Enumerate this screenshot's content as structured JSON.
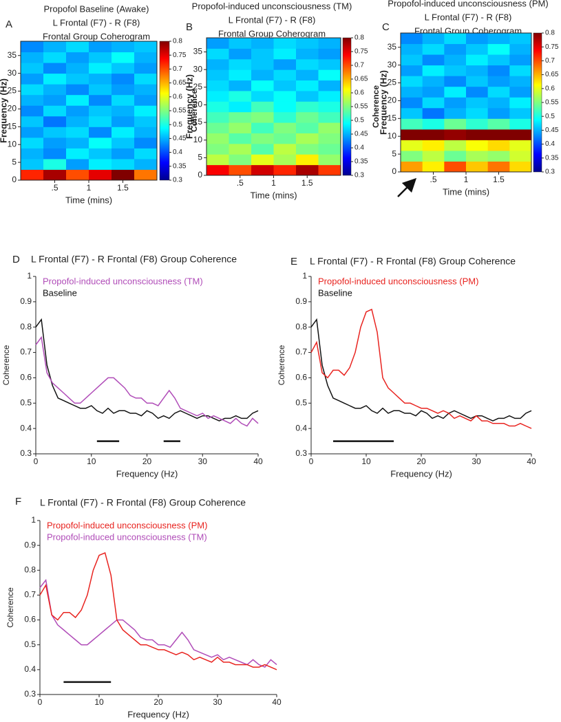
{
  "chart_data": [
    {
      "type": "heatmap",
      "label": "A",
      "title": [
        "Propofol Baseline (Awake)",
        "L Frontal (F7) -  R (F8)",
        "Frontal Group Coherogram"
      ],
      "x_label": "Time (mins)",
      "y_label": "Frequency (Hz)",
      "colorbar_label": "Coherence",
      "xlim": [
        0,
        2
      ],
      "xticks": [
        {
          "value": 0.5,
          "label": ".5"
        },
        1,
        1.5
      ],
      "ylim": [
        0,
        39
      ],
      "yticks": [
        0,
        5,
        10,
        15,
        20,
        25,
        30,
        35
      ],
      "clim": [
        0.3,
        0.8
      ],
      "cticks": [
        0.3,
        0.35,
        0.4,
        0.45,
        0.5,
        0.55,
        0.6,
        0.65,
        0.7,
        0.75,
        0.8
      ],
      "z": [
        [
          0.72,
          0.78,
          0.7,
          0.75,
          0.8,
          0.68
        ],
        [
          0.46,
          0.5,
          0.44,
          0.48,
          0.47,
          0.45
        ],
        [
          0.45,
          0.43,
          0.48,
          0.46,
          0.44,
          0.47
        ],
        [
          0.47,
          0.44,
          0.45,
          0.49,
          0.46,
          0.43
        ],
        [
          0.44,
          0.46,
          0.47,
          0.43,
          0.48,
          0.45
        ],
        [
          0.46,
          0.42,
          0.45,
          0.47,
          0.44,
          0.46
        ],
        [
          0.43,
          0.47,
          0.44,
          0.46,
          0.45,
          0.48
        ],
        [
          0.45,
          0.44,
          0.48,
          0.43,
          0.47,
          0.44
        ],
        [
          0.47,
          0.45,
          0.43,
          0.46,
          0.44,
          0.45
        ],
        [
          0.44,
          0.48,
          0.46,
          0.45,
          0.43,
          0.47
        ],
        [
          0.46,
          0.43,
          0.45,
          0.48,
          0.46,
          0.44
        ],
        [
          0.45,
          0.47,
          0.44,
          0.46,
          0.49,
          0.45
        ],
        [
          0.43,
          0.45,
          0.47,
          0.44,
          0.45,
          0.46
        ]
      ]
    },
    {
      "type": "heatmap",
      "label": "B",
      "title": [
        "Propofol-induced unconsciousness (TM)",
        "L Frontal (F7) -  R (F8)",
        "Frontal Group Coherogram"
      ],
      "x_label": "Time (mins)",
      "y_label": "Frequency (Hz)",
      "colorbar_label": "Coherence",
      "xlim": [
        0,
        2
      ],
      "xticks": [
        {
          "value": 0.5,
          "label": ".5"
        },
        1,
        1.5
      ],
      "ylim": [
        0,
        39
      ],
      "yticks": [
        0,
        5,
        10,
        15,
        20,
        25,
        30,
        35
      ],
      "clim": [
        0.3,
        0.8
      ],
      "cticks": [
        0.3,
        0.35,
        0.4,
        0.45,
        0.5,
        0.55,
        0.6,
        0.65,
        0.7,
        0.75,
        0.8
      ],
      "z": [
        [
          0.74,
          0.7,
          0.76,
          0.72,
          0.78,
          0.71
        ],
        [
          0.58,
          0.55,
          0.6,
          0.57,
          0.62,
          0.56
        ],
        [
          0.55,
          0.57,
          0.53,
          0.58,
          0.55,
          0.54
        ],
        [
          0.56,
          0.53,
          0.55,
          0.54,
          0.57,
          0.55
        ],
        [
          0.54,
          0.56,
          0.52,
          0.55,
          0.53,
          0.56
        ],
        [
          0.52,
          0.54,
          0.55,
          0.51,
          0.54,
          0.52
        ],
        [
          0.5,
          0.48,
          0.52,
          0.49,
          0.51,
          0.5
        ],
        [
          0.48,
          0.5,
          0.47,
          0.49,
          0.46,
          0.48
        ],
        [
          0.47,
          0.45,
          0.49,
          0.46,
          0.48,
          0.45
        ],
        [
          0.46,
          0.48,
          0.45,
          0.47,
          0.45,
          0.49
        ],
        [
          0.45,
          0.47,
          0.46,
          0.44,
          0.47,
          0.46
        ],
        [
          0.47,
          0.44,
          0.46,
          0.48,
          0.45,
          0.44
        ],
        [
          0.44,
          0.46,
          0.45,
          0.47,
          0.46,
          0.45
        ]
      ]
    },
    {
      "type": "heatmap",
      "label": "C",
      "title": [
        "Propofol-induced unconsciousness (PM)",
        "L Frontal (F7) -  R (F8)",
        "Frontal Group Coherogram"
      ],
      "x_label": "Time (mins)",
      "y_label": "Frequency (Hz)",
      "colorbar_label": "Coherence",
      "xlim": [
        0,
        2
      ],
      "xticks": [
        {
          "value": 0.5,
          "label": ".5"
        },
        1,
        1.5
      ],
      "ylim": [
        0,
        39
      ],
      "yticks": [
        0,
        5,
        10,
        15,
        20,
        25,
        30,
        35
      ],
      "clim": [
        0.3,
        0.8
      ],
      "cticks": [
        0.3,
        0.35,
        0.4,
        0.45,
        0.5,
        0.55,
        0.6,
        0.65,
        0.7,
        0.75,
        0.8
      ],
      "z": [
        [
          0.66,
          0.62,
          0.7,
          0.64,
          0.68,
          0.63
        ],
        [
          0.55,
          0.58,
          0.54,
          0.57,
          0.56,
          0.59
        ],
        [
          0.6,
          0.62,
          0.58,
          0.61,
          0.63,
          0.6
        ],
        [
          0.8,
          0.8,
          0.79,
          0.8,
          0.8,
          0.8
        ],
        [
          0.52,
          0.5,
          0.54,
          0.51,
          0.53,
          0.5
        ],
        [
          0.46,
          0.42,
          0.45,
          0.47,
          0.44,
          0.46
        ],
        [
          0.43,
          0.47,
          0.44,
          0.46,
          0.45,
          0.48
        ],
        [
          0.45,
          0.44,
          0.48,
          0.43,
          0.47,
          0.44
        ],
        [
          0.47,
          0.45,
          0.43,
          0.46,
          0.44,
          0.45
        ],
        [
          0.44,
          0.48,
          0.46,
          0.45,
          0.43,
          0.47
        ],
        [
          0.46,
          0.43,
          0.45,
          0.48,
          0.46,
          0.44
        ],
        [
          0.45,
          0.47,
          0.44,
          0.46,
          0.49,
          0.45
        ],
        [
          0.43,
          0.45,
          0.47,
          0.44,
          0.45,
          0.46
        ]
      ]
    },
    {
      "type": "line",
      "label": "D",
      "title": "L Frontal (F7) - R Frontal (F8)   Group Coherence",
      "x_label": "Frequency (Hz)",
      "y_label": "Coherence",
      "xlim": [
        0,
        40
      ],
      "xticks": [
        0,
        10,
        20,
        30,
        40
      ],
      "ylim": [
        0.3,
        1
      ],
      "yticks": [
        0.3,
        0.4,
        0.5,
        0.6,
        0.7,
        0.8,
        0.9,
        1
      ],
      "legend": "upper left",
      "x": [
        0,
        1,
        2,
        3,
        4,
        5,
        6,
        7,
        8,
        9,
        10,
        11,
        12,
        13,
        14,
        15,
        16,
        17,
        18,
        19,
        20,
        21,
        22,
        23,
        24,
        25,
        26,
        27,
        28,
        29,
        30,
        31,
        32,
        33,
        34,
        35,
        36,
        37,
        38,
        39,
        40
      ],
      "series": [
        {
          "name": "Propofol-induced unconsciousness (TM)",
          "color": "#b04cb8",
          "values": [
            0.73,
            0.76,
            0.62,
            0.58,
            0.56,
            0.54,
            0.52,
            0.5,
            0.5,
            0.52,
            0.54,
            0.56,
            0.58,
            0.6,
            0.6,
            0.58,
            0.56,
            0.53,
            0.52,
            0.52,
            0.5,
            0.5,
            0.49,
            0.52,
            0.55,
            0.52,
            0.48,
            0.47,
            0.46,
            0.45,
            0.46,
            0.44,
            0.45,
            0.44,
            0.43,
            0.42,
            0.44,
            0.42,
            0.41,
            0.44,
            0.42
          ]
        },
        {
          "name": "Baseline",
          "color": "#111111",
          "values": [
            0.8,
            0.83,
            0.65,
            0.57,
            0.52,
            0.51,
            0.5,
            0.49,
            0.48,
            0.48,
            0.49,
            0.47,
            0.46,
            0.48,
            0.46,
            0.47,
            0.47,
            0.46,
            0.46,
            0.45,
            0.47,
            0.46,
            0.44,
            0.45,
            0.44,
            0.46,
            0.47,
            0.46,
            0.45,
            0.44,
            0.45,
            0.45,
            0.44,
            0.43,
            0.44,
            0.44,
            0.45,
            0.44,
            0.44,
            0.46,
            0.47
          ]
        }
      ],
      "significance_bars": [
        [
          11,
          15
        ],
        [
          23,
          26
        ]
      ],
      "significance_y": 0.35
    },
    {
      "type": "line",
      "label": "E",
      "title": "L Frontal (F7) - R Frontal (F8)   Group Coherence",
      "x_label": "Frequency (Hz)",
      "y_label": "Coherence",
      "xlim": [
        0,
        40
      ],
      "xticks": [
        0,
        10,
        20,
        30,
        40
      ],
      "ylim": [
        0.3,
        1
      ],
      "yticks": [
        0.3,
        0.4,
        0.5,
        0.6,
        0.7,
        0.8,
        0.9,
        1
      ],
      "legend": "upper left",
      "x": [
        0,
        1,
        2,
        3,
        4,
        5,
        6,
        7,
        8,
        9,
        10,
        11,
        12,
        13,
        14,
        15,
        16,
        17,
        18,
        19,
        20,
        21,
        22,
        23,
        24,
        25,
        26,
        27,
        28,
        29,
        30,
        31,
        32,
        33,
        34,
        35,
        36,
        37,
        38,
        39,
        40
      ],
      "series": [
        {
          "name": "Propofol-induced unconsciousness (PM)",
          "color": "#e8231f",
          "values": [
            0.7,
            0.74,
            0.62,
            0.6,
            0.63,
            0.63,
            0.61,
            0.64,
            0.7,
            0.8,
            0.86,
            0.87,
            0.78,
            0.6,
            0.56,
            0.54,
            0.52,
            0.5,
            0.5,
            0.49,
            0.48,
            0.48,
            0.47,
            0.46,
            0.47,
            0.46,
            0.44,
            0.45,
            0.44,
            0.43,
            0.45,
            0.43,
            0.43,
            0.42,
            0.42,
            0.42,
            0.41,
            0.41,
            0.42,
            0.41,
            0.4
          ]
        },
        {
          "name": "Baseline",
          "color": "#111111",
          "values": [
            0.8,
            0.83,
            0.65,
            0.57,
            0.52,
            0.51,
            0.5,
            0.49,
            0.48,
            0.48,
            0.49,
            0.47,
            0.46,
            0.48,
            0.46,
            0.47,
            0.47,
            0.46,
            0.46,
            0.45,
            0.47,
            0.46,
            0.44,
            0.45,
            0.44,
            0.46,
            0.47,
            0.46,
            0.45,
            0.44,
            0.45,
            0.45,
            0.44,
            0.43,
            0.44,
            0.44,
            0.45,
            0.44,
            0.44,
            0.46,
            0.47
          ]
        }
      ],
      "significance_bars": [
        [
          4,
          15
        ]
      ],
      "significance_y": 0.35
    },
    {
      "type": "line",
      "label": "F",
      "title": "L Frontal (F7) - R Frontal (F8)   Group Coherence",
      "x_label": "Frequency (Hz)",
      "y_label": "Coherence",
      "xlim": [
        0,
        40
      ],
      "xticks": [
        0,
        10,
        20,
        30,
        40
      ],
      "ylim": [
        0.3,
        1
      ],
      "yticks": [
        0.3,
        0.4,
        0.5,
        0.6,
        0.7,
        0.8,
        0.9,
        1
      ],
      "legend": "upper left",
      "x": [
        0,
        1,
        2,
        3,
        4,
        5,
        6,
        7,
        8,
        9,
        10,
        11,
        12,
        13,
        14,
        15,
        16,
        17,
        18,
        19,
        20,
        21,
        22,
        23,
        24,
        25,
        26,
        27,
        28,
        29,
        30,
        31,
        32,
        33,
        34,
        35,
        36,
        37,
        38,
        39,
        40
      ],
      "series": [
        {
          "name": "Propofol-induced unconsciousness (PM)",
          "color": "#e8231f",
          "values": [
            0.7,
            0.74,
            0.62,
            0.6,
            0.63,
            0.63,
            0.61,
            0.64,
            0.7,
            0.8,
            0.86,
            0.87,
            0.78,
            0.6,
            0.56,
            0.54,
            0.52,
            0.5,
            0.5,
            0.49,
            0.48,
            0.48,
            0.47,
            0.46,
            0.47,
            0.46,
            0.44,
            0.45,
            0.44,
            0.43,
            0.45,
            0.43,
            0.43,
            0.42,
            0.42,
            0.42,
            0.41,
            0.41,
            0.42,
            0.41,
            0.4
          ]
        },
        {
          "name": "Propofol-induced unconsciousness (TM)",
          "color": "#b04cb8",
          "values": [
            0.73,
            0.76,
            0.62,
            0.58,
            0.56,
            0.54,
            0.52,
            0.5,
            0.5,
            0.52,
            0.54,
            0.56,
            0.58,
            0.6,
            0.6,
            0.58,
            0.56,
            0.53,
            0.52,
            0.52,
            0.5,
            0.5,
            0.49,
            0.52,
            0.55,
            0.52,
            0.48,
            0.47,
            0.46,
            0.45,
            0.46,
            0.44,
            0.45,
            0.44,
            0.43,
            0.42,
            0.44,
            0.42,
            0.41,
            0.44,
            0.42
          ]
        }
      ],
      "significance_bars": [
        [
          4,
          12
        ]
      ],
      "significance_y": 0.35
    }
  ]
}
